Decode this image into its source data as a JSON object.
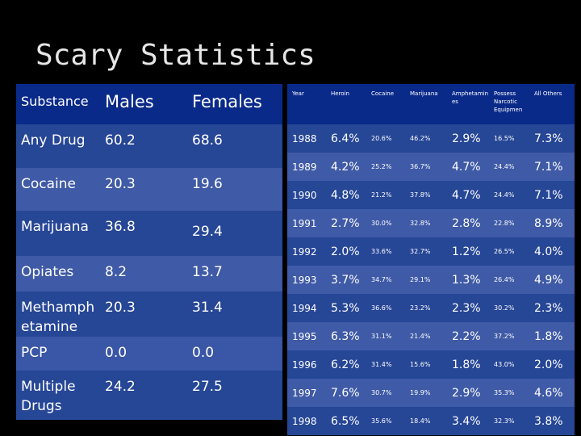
{
  "slide_title": "Scary Statistics",
  "left_table": {
    "headers": {
      "substance": "Substance",
      "males": "Males",
      "females": "Females"
    },
    "rows": [
      {
        "substance": "Any Drug",
        "males": "60.2",
        "females": "68.6"
      },
      {
        "substance": "Cocaine",
        "males": "20.3",
        "females": "19.6"
      },
      {
        "substance": "Marijuana",
        "males": "36.8",
        "females": "29.4"
      },
      {
        "substance": "Opiates",
        "males": "8.2",
        "females": "13.7"
      },
      {
        "substance": "Methamphetamine",
        "males": "20.3",
        "females": "31.4"
      },
      {
        "substance": "PCP",
        "males": "0.0",
        "females": "0.0"
      },
      {
        "substance": "Multiple Drugs",
        "males": "24.2",
        "females": "27.5"
      }
    ]
  },
  "right_table": {
    "headers": {
      "year": "Year",
      "heroin": "Heroin",
      "cocaine": "Cocaine",
      "marijuana": "Marijuana",
      "amphetamines": "Amphetamines",
      "narcotic": "Possess Narcotic Equipmen",
      "others": "All Others"
    },
    "rows": [
      {
        "year": "1988",
        "heroin": "6.4%",
        "cocaine": "20.6%",
        "marijuana": "46.2%",
        "amphetamines": "2.9%",
        "narcotic": "16.5%",
        "others": "7.3%"
      },
      {
        "year": "1989",
        "heroin": "4.2%",
        "cocaine": "25.2%",
        "marijuana": "36.7%",
        "amphetamines": "4.7%",
        "narcotic": "24.4%",
        "others": "7.1%"
      },
      {
        "year": "1990",
        "heroin": "4.8%",
        "cocaine": "21.2%",
        "marijuana": "37.8%",
        "amphetamines": "4.7%",
        "narcotic": "24.4%",
        "others": "7.1%"
      },
      {
        "year": "1991",
        "heroin": "2.7%",
        "cocaine": "30.0%",
        "marijuana": "32.8%",
        "amphetamines": "2.8%",
        "narcotic": "22.8%",
        "others": "8.9%"
      },
      {
        "year": "1992",
        "heroin": "2.0%",
        "cocaine": "33.6%",
        "marijuana": "32.7%",
        "amphetamines": "1.2%",
        "narcotic": "26.5%",
        "others": "4.0%"
      },
      {
        "year": "1993",
        "heroin": "3.7%",
        "cocaine": "34.7%",
        "marijuana": "29.1%",
        "amphetamines": "1.3%",
        "narcotic": "26.4%",
        "others": "4.9%"
      },
      {
        "year": "1994",
        "heroin": "5.3%",
        "cocaine": "36.6%",
        "marijuana": "23.2%",
        "amphetamines": "2.3%",
        "narcotic": "30.2%",
        "others": "2.3%"
      },
      {
        "year": "1995",
        "heroin": "6.3%",
        "cocaine": "31.1%",
        "marijuana": "21.4%",
        "amphetamines": "2.2%",
        "narcotic": "37.2%",
        "others": "1.8%"
      },
      {
        "year": "1996",
        "heroin": "6.2%",
        "cocaine": "31.4%",
        "marijuana": "15.6%",
        "amphetamines": "1.8%",
        "narcotic": "43.0%",
        "others": "2.0%"
      },
      {
        "year": "1997",
        "heroin": "7.6%",
        "cocaine": "30.7%",
        "marijuana": "19.9%",
        "amphetamines": "2.9%",
        "narcotic": "35.3%",
        "others": "4.6%"
      },
      {
        "year": "1998",
        "heroin": "6.5%",
        "cocaine": "35.6%",
        "marijuana": "18.4%",
        "amphetamines": "3.4%",
        "narcotic": "32.3%",
        "others": "3.8%"
      }
    ]
  }
}
